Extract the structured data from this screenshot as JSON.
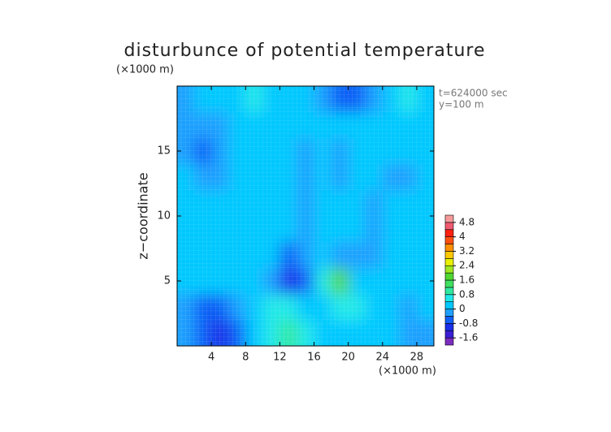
{
  "chart_data": {
    "type": "contour",
    "title": "disturbunce of potential temperature",
    "x_unit": "(×1000 m)",
    "y_unit": "(×1000 m)",
    "ylabel": "z−coordinate",
    "annotations": [
      "t=624000 sec",
      "y=100 m"
    ],
    "xlim": [
      0,
      30
    ],
    "ylim": [
      0,
      20
    ],
    "xticks": [
      4,
      8,
      12,
      16,
      20,
      24,
      28
    ],
    "yticks": [
      5,
      10,
      15
    ],
    "x": [
      1,
      3,
      5,
      7,
      9,
      11,
      13,
      15,
      17,
      19,
      21,
      23,
      25,
      27,
      29
    ],
    "y": [
      1,
      3,
      5,
      7,
      9,
      11,
      13,
      15,
      17,
      19
    ],
    "values": [
      [
        -0.3,
        -0.8,
        -1.0,
        -0.6,
        0.2,
        0.6,
        0.8,
        0.6,
        0.3,
        0.2,
        0.1,
        0,
        0.1,
        -0.4,
        -0.2
      ],
      [
        -0.2,
        -0.6,
        -0.8,
        -0.4,
        0.3,
        0.5,
        0.4,
        0.2,
        0.3,
        0.5,
        0.4,
        0,
        0,
        -0.1,
        0
      ],
      [
        0,
        0.1,
        0,
        0,
        0,
        -0.4,
        -0.9,
        -0.6,
        0.5,
        1.8,
        0.3,
        0.1,
        0,
        0,
        0
      ],
      [
        0,
        0.1,
        0.2,
        0,
        0,
        0,
        -0.6,
        -0.4,
        0,
        -0.4,
        -0.4,
        -0.3,
        0.1,
        0,
        0
      ],
      [
        0.1,
        0,
        0.1,
        0,
        0,
        0.2,
        0,
        -0.3,
        0.1,
        0.2,
        0.1,
        -0.3,
        0,
        0,
        0
      ],
      [
        0.1,
        0,
        0,
        0.1,
        0,
        0.3,
        0.1,
        -0.2,
        0.1,
        0.3,
        0.2,
        -0.2,
        0,
        0.1,
        0
      ],
      [
        0,
        -0.3,
        -0.3,
        0,
        0.2,
        0.3,
        0.1,
        -0.1,
        0.1,
        -0.2,
        0.3,
        0,
        -0.1,
        -0.2,
        0
      ],
      [
        -0.3,
        -0.5,
        -0.4,
        0,
        0.3,
        0.2,
        0,
        -0.2,
        0,
        -0.3,
        0.3,
        0.1,
        0,
        0,
        0
      ],
      [
        -0.2,
        -0.4,
        -0.3,
        0,
        0.3,
        0.1,
        0,
        0.1,
        0.2,
        0,
        0,
        0.2,
        0.1,
        0,
        0
      ],
      [
        -0.4,
        0.1,
        0.2,
        0.3,
        0.5,
        0.3,
        0.2,
        0,
        -0.4,
        -0.8,
        -0.5,
        -0.2,
        0.3,
        0.4,
        0.3
      ]
    ],
    "clevels": [
      -2,
      -1.6,
      -1.2,
      -0.8,
      -0.4,
      0,
      0.4,
      0.8,
      1.2,
      1.6,
      2,
      2.4,
      2.8,
      3.2,
      3.6,
      4,
      4.4,
      4.8,
      5.2
    ],
    "colors": [
      "#7b2cbf",
      "#3a1fd6",
      "#1a2fe8",
      "#1060f5",
      "#1ea0ff",
      "#00c8ff",
      "#20e8e8",
      "#30e8a0",
      "#40e060",
      "#50d830",
      "#a0e820",
      "#e8f000",
      "#ffc800",
      "#ff9000",
      "#ff5010",
      "#ff2010",
      "#f05a70",
      "#f59a9a"
    ],
    "cticks": [
      4.8,
      4,
      3.2,
      2.4,
      1.6,
      0.8,
      0,
      -0.8,
      -1.6
    ]
  }
}
